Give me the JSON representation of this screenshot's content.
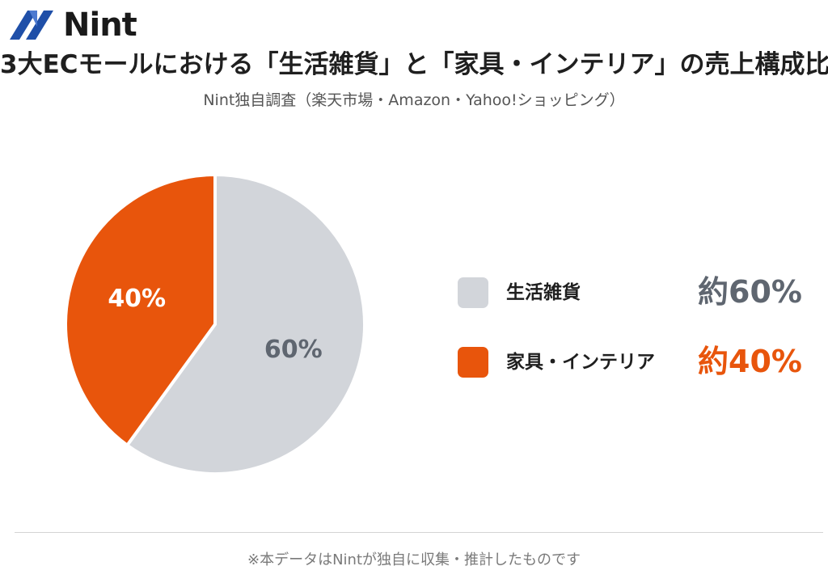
{
  "logo": {
    "text": "Nint"
  },
  "chart_data": {
    "type": "pie",
    "title": "3大ECモールにおける「生活雑貨」と「家具・インテリア」の売上構成比",
    "subtitle": "Nint独自調査（楽天市場・Amazon・Yahoo!ショッピング）",
    "slices": [
      {
        "name": "生活雑貨",
        "value": 60,
        "label": "60%",
        "legend_value": "約60%",
        "color": "#d2d5da",
        "label_color": "#5f6670"
      },
      {
        "name": "家具・インテリア",
        "value": 40,
        "label": "40%",
        "legend_value": "約40%",
        "color": "#e8550c",
        "label_color": "#ffffff"
      }
    ],
    "start_angle_deg": 0,
    "direction": "clockwise",
    "legend_position": "right"
  },
  "footnote": "※本データはNintが独自に収集・推計したものです"
}
